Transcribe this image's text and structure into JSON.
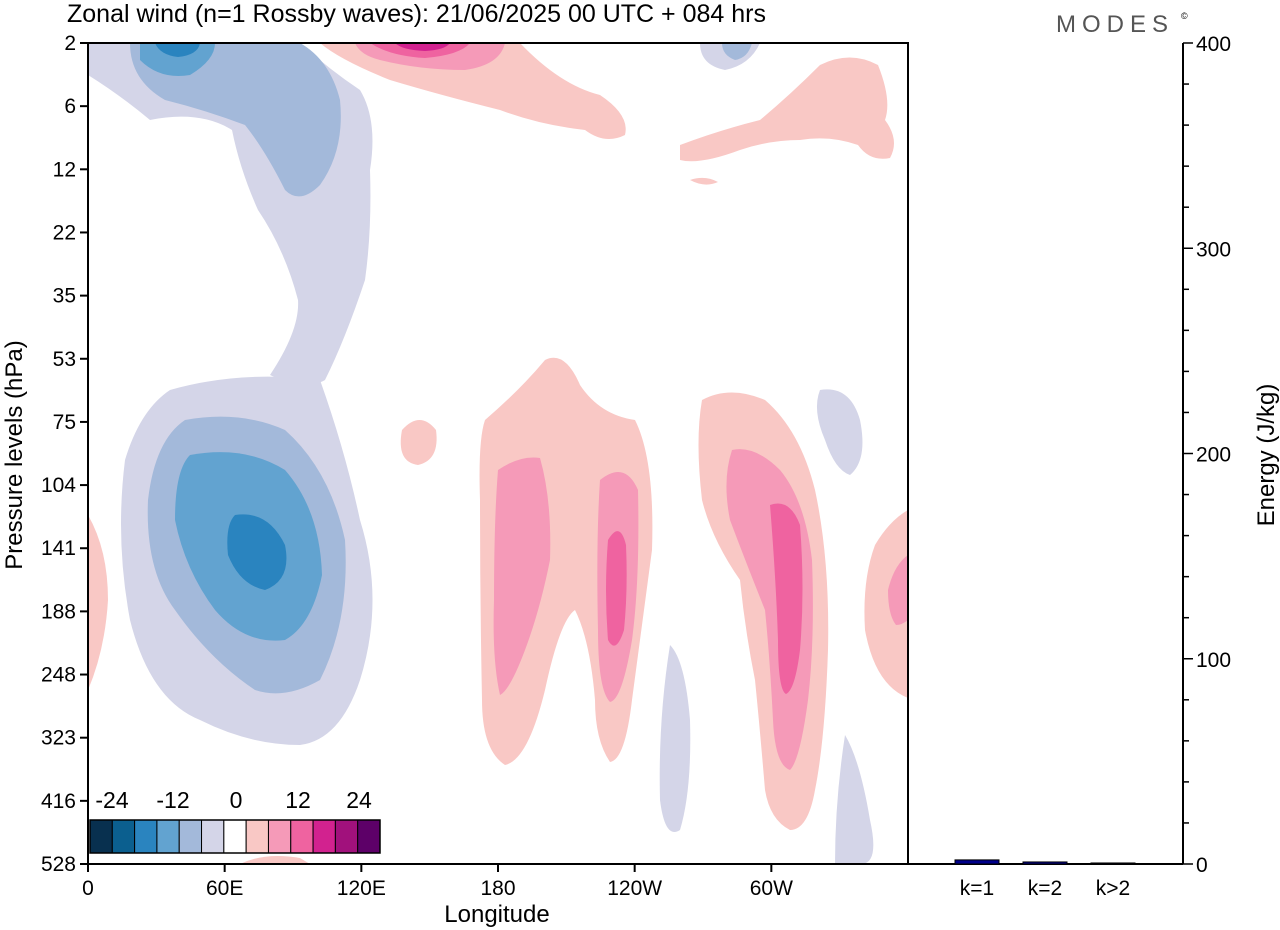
{
  "title": "Zonal wind (n=1 Rossby waves):  21/06/2025  00 UTC  + 084 hrs",
  "logo": "MODES",
  "logo_mark": "©",
  "chart_data": [
    {
      "type": "heatmap",
      "title": "Zonal wind (n=1 Rossby waves):  21/06/2025  00 UTC  + 084 hrs",
      "xlabel": "Longitude",
      "ylabel": "Pressure levels (hPa)",
      "x_ticks": [
        "0",
        "60E",
        "120E",
        "180",
        "120W",
        "60W"
      ],
      "x_tick_values": [
        0,
        60,
        120,
        180,
        240,
        300
      ],
      "xlim": [
        0,
        360
      ],
      "y_ticks": [
        "2",
        "6",
        "12",
        "22",
        "35",
        "53",
        "75",
        "104",
        "141",
        "188",
        "248",
        "323",
        "416",
        "528"
      ],
      "y_scale": "model levels (pressure decreasing upward)",
      "colorbar": {
        "labels": [
          "-24",
          "-12",
          "0",
          "12",
          "24"
        ],
        "colors": [
          "#08304f",
          "#0b5f8f",
          "#2a84bf",
          "#62a3d0",
          "#a3b9da",
          "#d4d5e8",
          "#ffffff",
          "#f9c8c5",
          "#f59ab8",
          "#ef63a0",
          "#d2228f",
          "#a1117c",
          "#5d0068"
        ]
      },
      "features": [
        {
          "sign": "negative",
          "lon_center": 75,
          "level_center": "141",
          "min_value": -18
        },
        {
          "sign": "negative",
          "lon_center": 38,
          "level_center": "2",
          "min_value": -18
        },
        {
          "sign": "positive",
          "lon_center": 140,
          "level_center": "2",
          "max_value": 14
        },
        {
          "sign": "positive",
          "lon_center": 233,
          "level_center": "188",
          "max_value": 12
        },
        {
          "sign": "positive",
          "lon_center": 308,
          "level_center": "188",
          "max_value": 12
        },
        {
          "sign": "positive",
          "lon_center": 185,
          "level_center": "141",
          "max_value": 8
        }
      ],
      "grid": false
    },
    {
      "type": "bar",
      "categories": [
        "k=1",
        "k=2",
        "k>2"
      ],
      "values": [
        2,
        1,
        0.5
      ],
      "ylabel": "Energy (J/kg)",
      "ylim": [
        0,
        400
      ],
      "y_ticks": [
        0,
        100,
        200,
        300,
        400
      ],
      "colors": [
        "#00008b",
        "#00008b",
        "#00008b"
      ]
    }
  ]
}
